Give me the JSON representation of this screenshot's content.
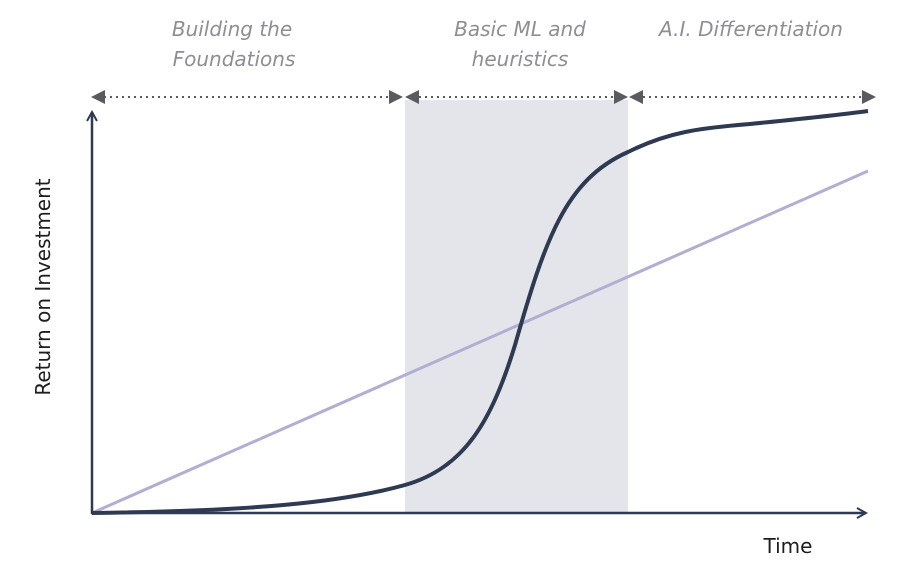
{
  "phases": [
    {
      "label_line1": "Building the",
      "label_line2": "Foundations"
    },
    {
      "label_line1": "Basic ML and",
      "label_line2": "heuristics"
    },
    {
      "label_line1": "A.I. Differentiation",
      "label_line2": ""
    }
  ],
  "axes": {
    "y_label": "Return on Investment",
    "x_label": "Time"
  },
  "colors": {
    "s_curve": "#2e3a52",
    "linear_line": "#b2aed1",
    "shaded_band": "#e4e5ea",
    "axis": "#2e3a52",
    "arrows": "#5a5a60",
    "phase_text": "#8e8e95"
  }
}
